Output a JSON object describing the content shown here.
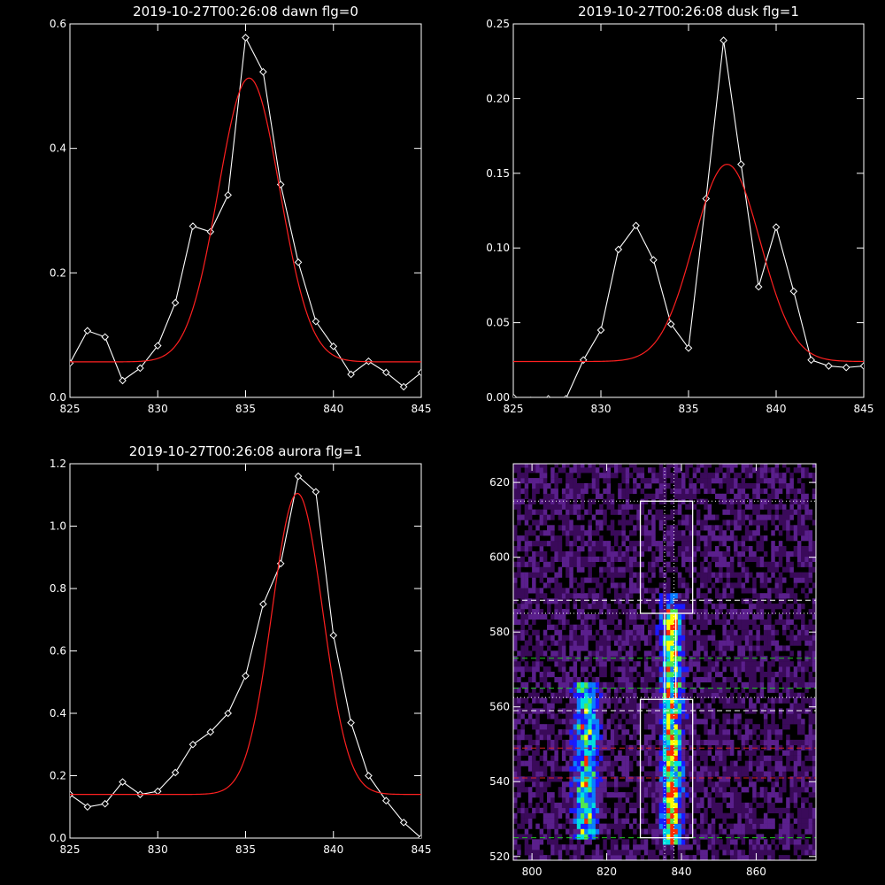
{
  "chart_data": [
    {
      "type": "line",
      "title": "2019-10-27T00:26:08 dawn flg=0",
      "xlim": [
        825,
        845
      ],
      "ylim": [
        0,
        0.6
      ],
      "xticks": [
        "825",
        "830",
        "835",
        "840",
        "845"
      ],
      "yticks": [
        "0.0",
        "0.2",
        "0.4",
        "0.6"
      ],
      "series": [
        {
          "kind": "data",
          "color": "#ffffff",
          "marker": "diamond",
          "x": [
            825,
            826,
            827,
            828,
            829,
            830,
            831,
            832,
            833,
            834,
            835,
            836,
            837,
            838,
            839,
            840,
            841,
            842,
            843,
            844,
            845
          ],
          "y": [
            0.055,
            0.107,
            0.097,
            0.027,
            0.047,
            0.083,
            0.152,
            0.275,
            0.266,
            0.325,
            0.578,
            0.523,
            0.342,
            0.217,
            0.122,
            0.082,
            0.037,
            0.058,
            0.04,
            0.017,
            0.04
          ]
        },
        {
          "kind": "gaussian",
          "color": "#ff2020",
          "amplitude": 0.456,
          "center": 835.2,
          "sigma": 1.75,
          "baseline": 0.057
        }
      ]
    },
    {
      "type": "line",
      "title": "2019-10-27T00:26:08 dusk flg=1",
      "xlim": [
        825,
        845
      ],
      "ylim": [
        0,
        0.25
      ],
      "xticks": [
        "825",
        "830",
        "835",
        "840",
        "845"
      ],
      "yticks": [
        "0.00",
        "0.05",
        "0.10",
        "0.15",
        "0.20",
        "0.25"
      ],
      "series": [
        {
          "kind": "data",
          "color": "#ffffff",
          "marker": "diamond",
          "x": [
            825,
            826,
            827,
            828,
            829,
            830,
            831,
            832,
            833,
            834,
            835,
            836,
            837,
            838,
            839,
            840,
            841,
            842,
            843,
            844,
            845
          ],
          "y": [
            0.0,
            -0.002,
            -0.001,
            -0.001,
            0.025,
            0.045,
            0.099,
            0.115,
            0.092,
            0.049,
            0.033,
            0.133,
            0.239,
            0.156,
            0.074,
            0.114,
            0.071,
            0.025,
            0.021,
            0.02,
            0.021
          ]
        },
        {
          "kind": "gaussian",
          "color": "#ff2020",
          "amplitude": 0.132,
          "center": 837.2,
          "sigma": 1.9,
          "baseline": 0.024
        }
      ]
    },
    {
      "type": "line",
      "title": "2019-10-27T00:26:08 aurora flg=1",
      "xlim": [
        825,
        845
      ],
      "ylim": [
        0,
        1.2
      ],
      "xticks": [
        "825",
        "830",
        "835",
        "840",
        "845"
      ],
      "yticks": [
        "0.0",
        "0.2",
        "0.4",
        "0.6",
        "0.8",
        "1.0",
        "1.2"
      ],
      "series": [
        {
          "kind": "data",
          "color": "#ffffff",
          "marker": "diamond",
          "x": [
            825,
            826,
            827,
            828,
            829,
            830,
            831,
            832,
            833,
            834,
            835,
            836,
            837,
            838,
            839,
            840,
            841,
            842,
            843,
            844,
            845
          ],
          "y": [
            0.14,
            0.1,
            0.11,
            0.18,
            0.14,
            0.15,
            0.21,
            0.3,
            0.34,
            0.4,
            0.52,
            0.75,
            0.88,
            1.16,
            1.11,
            0.65,
            0.37,
            0.2,
            0.12,
            0.05,
            0.0
          ]
        },
        {
          "kind": "gaussian",
          "color": "#ff2020",
          "amplitude": 0.965,
          "center": 837.95,
          "sigma": 1.45,
          "baseline": 0.14
        }
      ]
    },
    {
      "type": "heatmap",
      "title": "",
      "xlim": [
        795,
        876
      ],
      "ylim": [
        519,
        625
      ],
      "xticks": [
        "800",
        "820",
        "840",
        "860"
      ],
      "yticks": [
        "520",
        "540",
        "560",
        "580",
        "600",
        "620"
      ],
      "colorscale": [
        "#000000",
        "#3a0a5a",
        "#5a1f8c",
        "#1a1aff",
        "#0a7dff",
        "#00e0e0",
        "#4fe84f",
        "#ffff00",
        "#ff2a00"
      ],
      "emission_columns": [
        {
          "x": 837,
          "halfwidth": 2.5,
          "y0": 522,
          "y1": 590,
          "strength": 0.95
        },
        {
          "x": 814,
          "halfwidth": 3.0,
          "y0": 524,
          "y1": 566,
          "strength": 0.7
        }
      ],
      "boxes": [
        {
          "x0": 829,
          "x1": 843,
          "y0": 585,
          "y1": 615,
          "style": "solid",
          "color": "#ffffff"
        },
        {
          "x0": 835.5,
          "x1": 838.5,
          "y0": 562,
          "y1": 585,
          "style": "solid",
          "color": "#ffffff"
        },
        {
          "x0": 829,
          "x1": 843,
          "y0": 525,
          "y1": 562,
          "style": "solid",
          "color": "#ffffff"
        }
      ],
      "hlines": [
        {
          "y": 615,
          "style": "dotted",
          "color": "#ffffff"
        },
        {
          "y": 588.5,
          "style": "dashed",
          "color": "#ffffff"
        },
        {
          "y": 585,
          "style": "dotted",
          "color": "#ffffff"
        },
        {
          "y": 573,
          "style": "dashed",
          "color": "#22cc22"
        },
        {
          "y": 565,
          "style": "dashed",
          "color": "#22cc22"
        },
        {
          "y": 562.5,
          "style": "dotted",
          "color": "#ffffff"
        },
        {
          "y": 559,
          "style": "dashed",
          "color": "#ffffff"
        },
        {
          "y": 549,
          "style": "dashed",
          "color": "#dd2222"
        },
        {
          "y": 541,
          "style": "dashed",
          "color": "#dd2222"
        },
        {
          "y": 525,
          "style": "dashed",
          "color": "#22cc22"
        }
      ],
      "vlines": [
        {
          "x": 835.5,
          "style": "dotted",
          "color": "#ffffff"
        },
        {
          "x": 838.0,
          "style": "dotted",
          "color": "#ffffff"
        }
      ]
    }
  ]
}
